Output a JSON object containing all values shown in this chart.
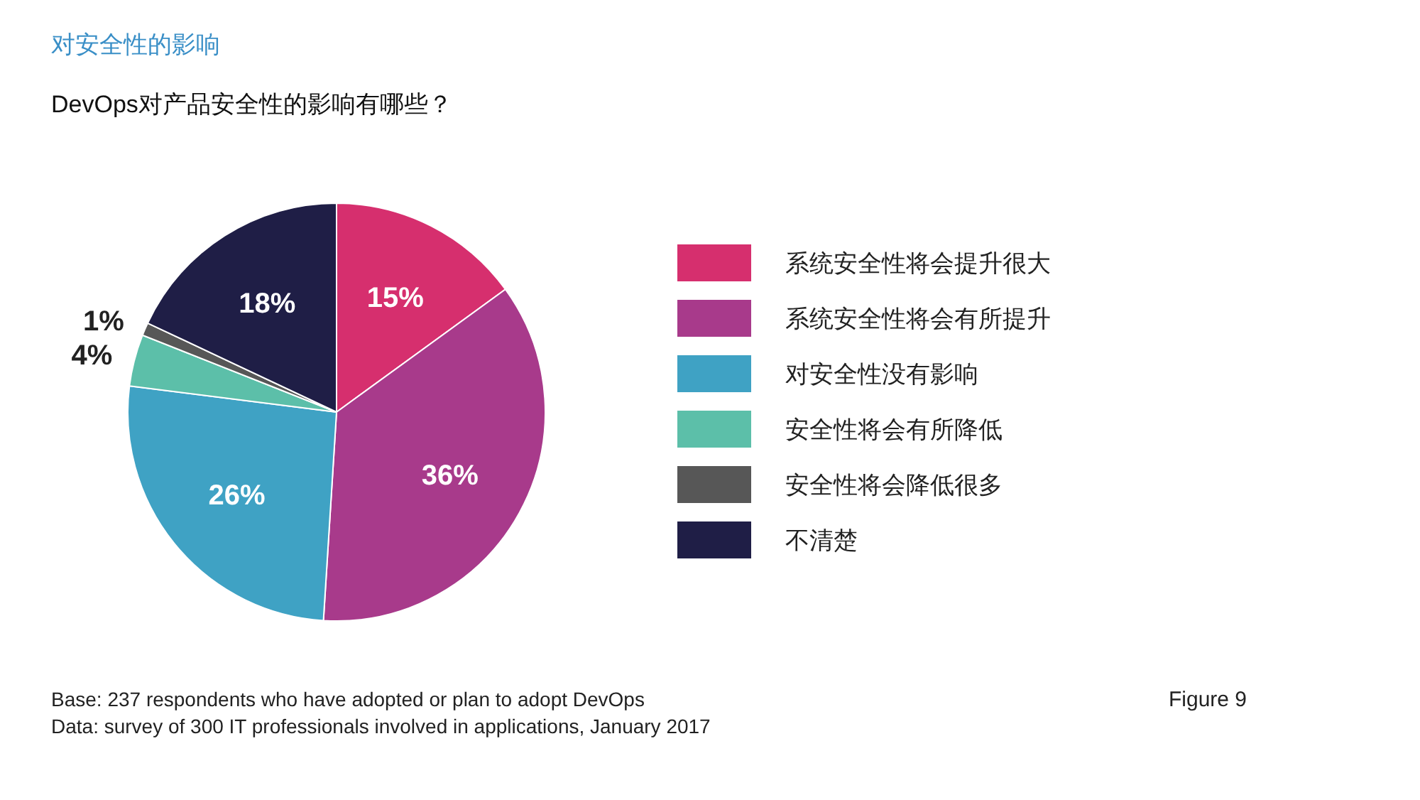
{
  "chart_data": {
    "type": "pie",
    "title": "对安全性的影响",
    "subtitle": "DevOps对产品安全性的影响有哪些？",
    "categories": [
      "系统安全性将会提升很大",
      "系统安全性将会有所提升",
      "对安全性没有影响",
      "安全性将会有所降低",
      "安全性将会降低很多",
      "不清楚"
    ],
    "values": [
      15,
      36,
      26,
      4,
      1,
      18
    ],
    "value_labels": [
      "15%",
      "36%",
      "26%",
      "4%",
      "1%",
      "18%"
    ],
    "colors": [
      "#d62f6e",
      "#a83a8b",
      "#3fa2c4",
      "#5cbfa9",
      "#575757",
      "#1f1e46"
    ],
    "legend": "right",
    "annotations": [
      "Base: 237 respondents who have adopted or plan to adopt DevOps",
      "Data: survey of 300 IT professionals involved in applications, January 2017",
      "Figure 9"
    ]
  }
}
